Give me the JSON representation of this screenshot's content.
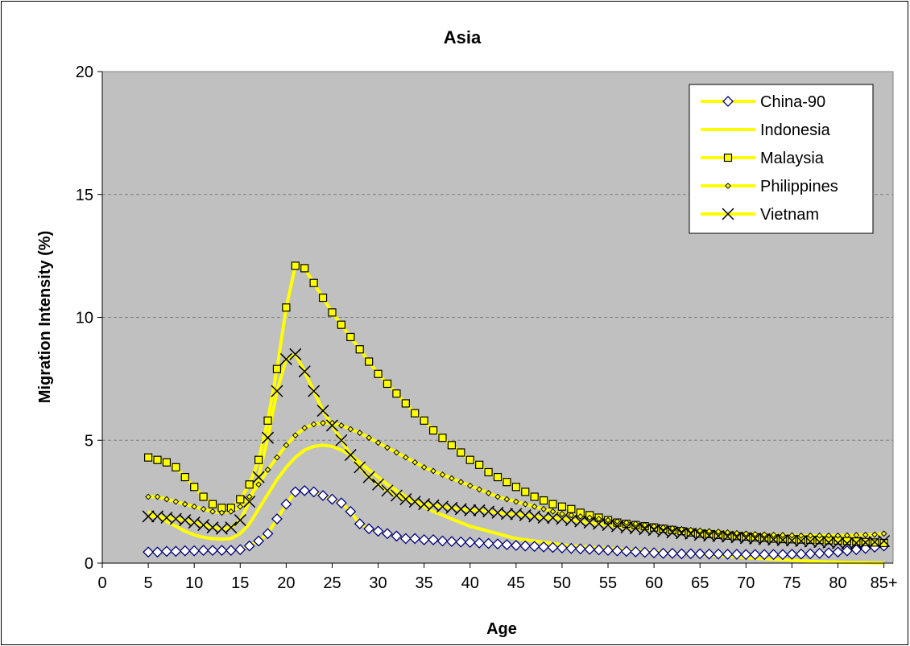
{
  "chart_data": {
    "type": "line",
    "title": "Asia",
    "xlabel": "Age",
    "ylabel": "Migration Intensity (%)",
    "ylim": [
      0,
      20
    ],
    "yticks": [
      "0",
      "5",
      "10",
      "15",
      "20"
    ],
    "xlim": [
      0,
      86
    ],
    "xticks": [
      "0",
      "5",
      "10",
      "15",
      "20",
      "25",
      "30",
      "35",
      "40",
      "45",
      "50",
      "55",
      "60",
      "65",
      "70",
      "75",
      "80",
      "85+"
    ],
    "grid": "horizontal dashed",
    "legend_position": "top-right",
    "plot_background": "#c0c0c0",
    "line_color": "#ffff00",
    "x": [
      5,
      6,
      7,
      8,
      9,
      10,
      11,
      12,
      13,
      14,
      15,
      16,
      17,
      18,
      19,
      20,
      21,
      22,
      23,
      24,
      25,
      26,
      27,
      28,
      29,
      30,
      31,
      32,
      33,
      34,
      35,
      36,
      37,
      38,
      39,
      40,
      41,
      42,
      43,
      44,
      45,
      46,
      47,
      48,
      49,
      50,
      51,
      52,
      53,
      54,
      55,
      56,
      57,
      58,
      59,
      60,
      61,
      62,
      63,
      64,
      65,
      66,
      67,
      68,
      69,
      70,
      71,
      72,
      73,
      74,
      75,
      76,
      77,
      78,
      79,
      80,
      81,
      82,
      83,
      84,
      85
    ],
    "series": [
      {
        "name": "China-90",
        "marker": "diamond",
        "marker_color": "#000080",
        "values": [
          0.45,
          0.45,
          0.48,
          0.48,
          0.5,
          0.5,
          0.52,
          0.52,
          0.52,
          0.52,
          0.55,
          0.7,
          0.9,
          1.2,
          1.8,
          2.4,
          2.9,
          2.95,
          2.9,
          2.75,
          2.6,
          2.45,
          2.1,
          1.6,
          1.4,
          1.3,
          1.2,
          1.1,
          1.0,
          1.0,
          0.95,
          0.95,
          0.9,
          0.88,
          0.86,
          0.85,
          0.82,
          0.8,
          0.78,
          0.75,
          0.72,
          0.7,
          0.68,
          0.66,
          0.64,
          0.62,
          0.6,
          0.58,
          0.56,
          0.54,
          0.52,
          0.5,
          0.48,
          0.46,
          0.44,
          0.42,
          0.4,
          0.4,
          0.38,
          0.38,
          0.38,
          0.37,
          0.37,
          0.36,
          0.36,
          0.35,
          0.35,
          0.35,
          0.35,
          0.35,
          0.36,
          0.37,
          0.38,
          0.4,
          0.42,
          0.45,
          0.5,
          0.55,
          0.6,
          0.65,
          0.7
        ]
      },
      {
        "name": "Indonesia",
        "marker": "none",
        "marker_color": "#ffff00",
        "values": [
          2.1,
          1.9,
          1.7,
          1.5,
          1.3,
          1.15,
          1.05,
          1.0,
          0.98,
          1.0,
          1.2,
          1.6,
          2.2,
          2.8,
          3.4,
          3.9,
          4.3,
          4.6,
          4.75,
          4.8,
          4.75,
          4.6,
          4.4,
          4.1,
          3.8,
          3.5,
          3.2,
          2.95,
          2.7,
          2.5,
          2.3,
          2.1,
          1.95,
          1.8,
          1.65,
          1.5,
          1.4,
          1.3,
          1.2,
          1.1,
          1.0,
          0.95,
          0.9,
          0.85,
          0.8,
          0.75,
          0.7,
          0.68,
          0.65,
          0.62,
          0.6,
          0.58,
          0.55,
          0.52,
          0.5,
          0.48,
          0.45,
          0.42,
          0.4,
          0.38,
          0.35,
          0.32,
          0.3,
          0.28,
          0.25,
          0.22,
          0.2,
          0.18,
          0.16,
          0.14,
          0.12,
          0.1,
          0.08,
          0.06,
          0.05,
          0.04,
          0.03,
          0.02,
          0.02,
          0.01,
          0.01
        ]
      },
      {
        "name": "Malaysia",
        "marker": "square",
        "marker_color": "#000000",
        "values": [
          4.3,
          4.2,
          4.1,
          3.9,
          3.5,
          3.1,
          2.7,
          2.4,
          2.25,
          2.25,
          2.6,
          3.2,
          4.2,
          5.8,
          7.9,
          10.4,
          12.1,
          12.0,
          11.4,
          10.8,
          10.2,
          9.7,
          9.2,
          8.7,
          8.2,
          7.7,
          7.3,
          6.9,
          6.5,
          6.1,
          5.8,
          5.4,
          5.1,
          4.8,
          4.5,
          4.2,
          4.0,
          3.7,
          3.5,
          3.3,
          3.1,
          2.9,
          2.7,
          2.55,
          2.4,
          2.3,
          2.2,
          2.05,
          1.95,
          1.85,
          1.75,
          1.65,
          1.6,
          1.55,
          1.5,
          1.45,
          1.4,
          1.35,
          1.3,
          1.25,
          1.2,
          1.18,
          1.15,
          1.12,
          1.1,
          1.08,
          1.05,
          1.03,
          1.0,
          0.98,
          0.97,
          0.96,
          0.95,
          0.94,
          0.93,
          0.92,
          0.9,
          0.88,
          0.86,
          0.84,
          0.82
        ]
      },
      {
        "name": "Philippines",
        "marker": "small-diamond",
        "marker_color": "#000000",
        "values": [
          2.7,
          2.7,
          2.6,
          2.5,
          2.4,
          2.3,
          2.2,
          2.1,
          2.05,
          2.1,
          2.3,
          2.7,
          3.2,
          3.8,
          4.3,
          4.8,
          5.2,
          5.5,
          5.65,
          5.7,
          5.7,
          5.6,
          5.45,
          5.3,
          5.1,
          4.9,
          4.7,
          4.5,
          4.3,
          4.1,
          3.9,
          3.75,
          3.6,
          3.45,
          3.3,
          3.15,
          3.0,
          2.85,
          2.7,
          2.6,
          2.5,
          2.4,
          2.3,
          2.2,
          2.1,
          2.0,
          1.95,
          1.9,
          1.85,
          1.8,
          1.75,
          1.7,
          1.65,
          1.6,
          1.55,
          1.5,
          1.45,
          1.42,
          1.38,
          1.35,
          1.32,
          1.3,
          1.28,
          1.25,
          1.22,
          1.2,
          1.18,
          1.16,
          1.15,
          1.14,
          1.13,
          1.12,
          1.12,
          1.12,
          1.12,
          1.12,
          1.13,
          1.14,
          1.15,
          1.16,
          1.2
        ]
      },
      {
        "name": "Vietnam",
        "marker": "x",
        "marker_color": "#000000",
        "values": [
          1.9,
          1.9,
          1.85,
          1.8,
          1.75,
          1.65,
          1.55,
          1.45,
          1.4,
          1.45,
          1.75,
          2.5,
          3.5,
          5.1,
          7.0,
          8.3,
          8.5,
          7.8,
          7.0,
          6.2,
          5.6,
          5.0,
          4.4,
          3.9,
          3.5,
          3.2,
          2.95,
          2.75,
          2.6,
          2.5,
          2.4,
          2.35,
          2.3,
          2.25,
          2.2,
          2.15,
          2.15,
          2.1,
          2.05,
          2.0,
          2.0,
          1.95,
          1.9,
          1.85,
          1.85,
          1.8,
          1.75,
          1.7,
          1.65,
          1.6,
          1.55,
          1.5,
          1.45,
          1.42,
          1.38,
          1.35,
          1.3,
          1.25,
          1.22,
          1.2,
          1.15,
          1.12,
          1.1,
          1.08,
          1.05,
          1.02,
          1.0,
          0.98,
          0.96,
          0.94,
          0.92,
          0.9,
          0.88,
          0.86,
          0.84,
          0.82,
          0.8,
          0.82,
          0.84,
          0.86,
          0.9
        ]
      }
    ]
  }
}
